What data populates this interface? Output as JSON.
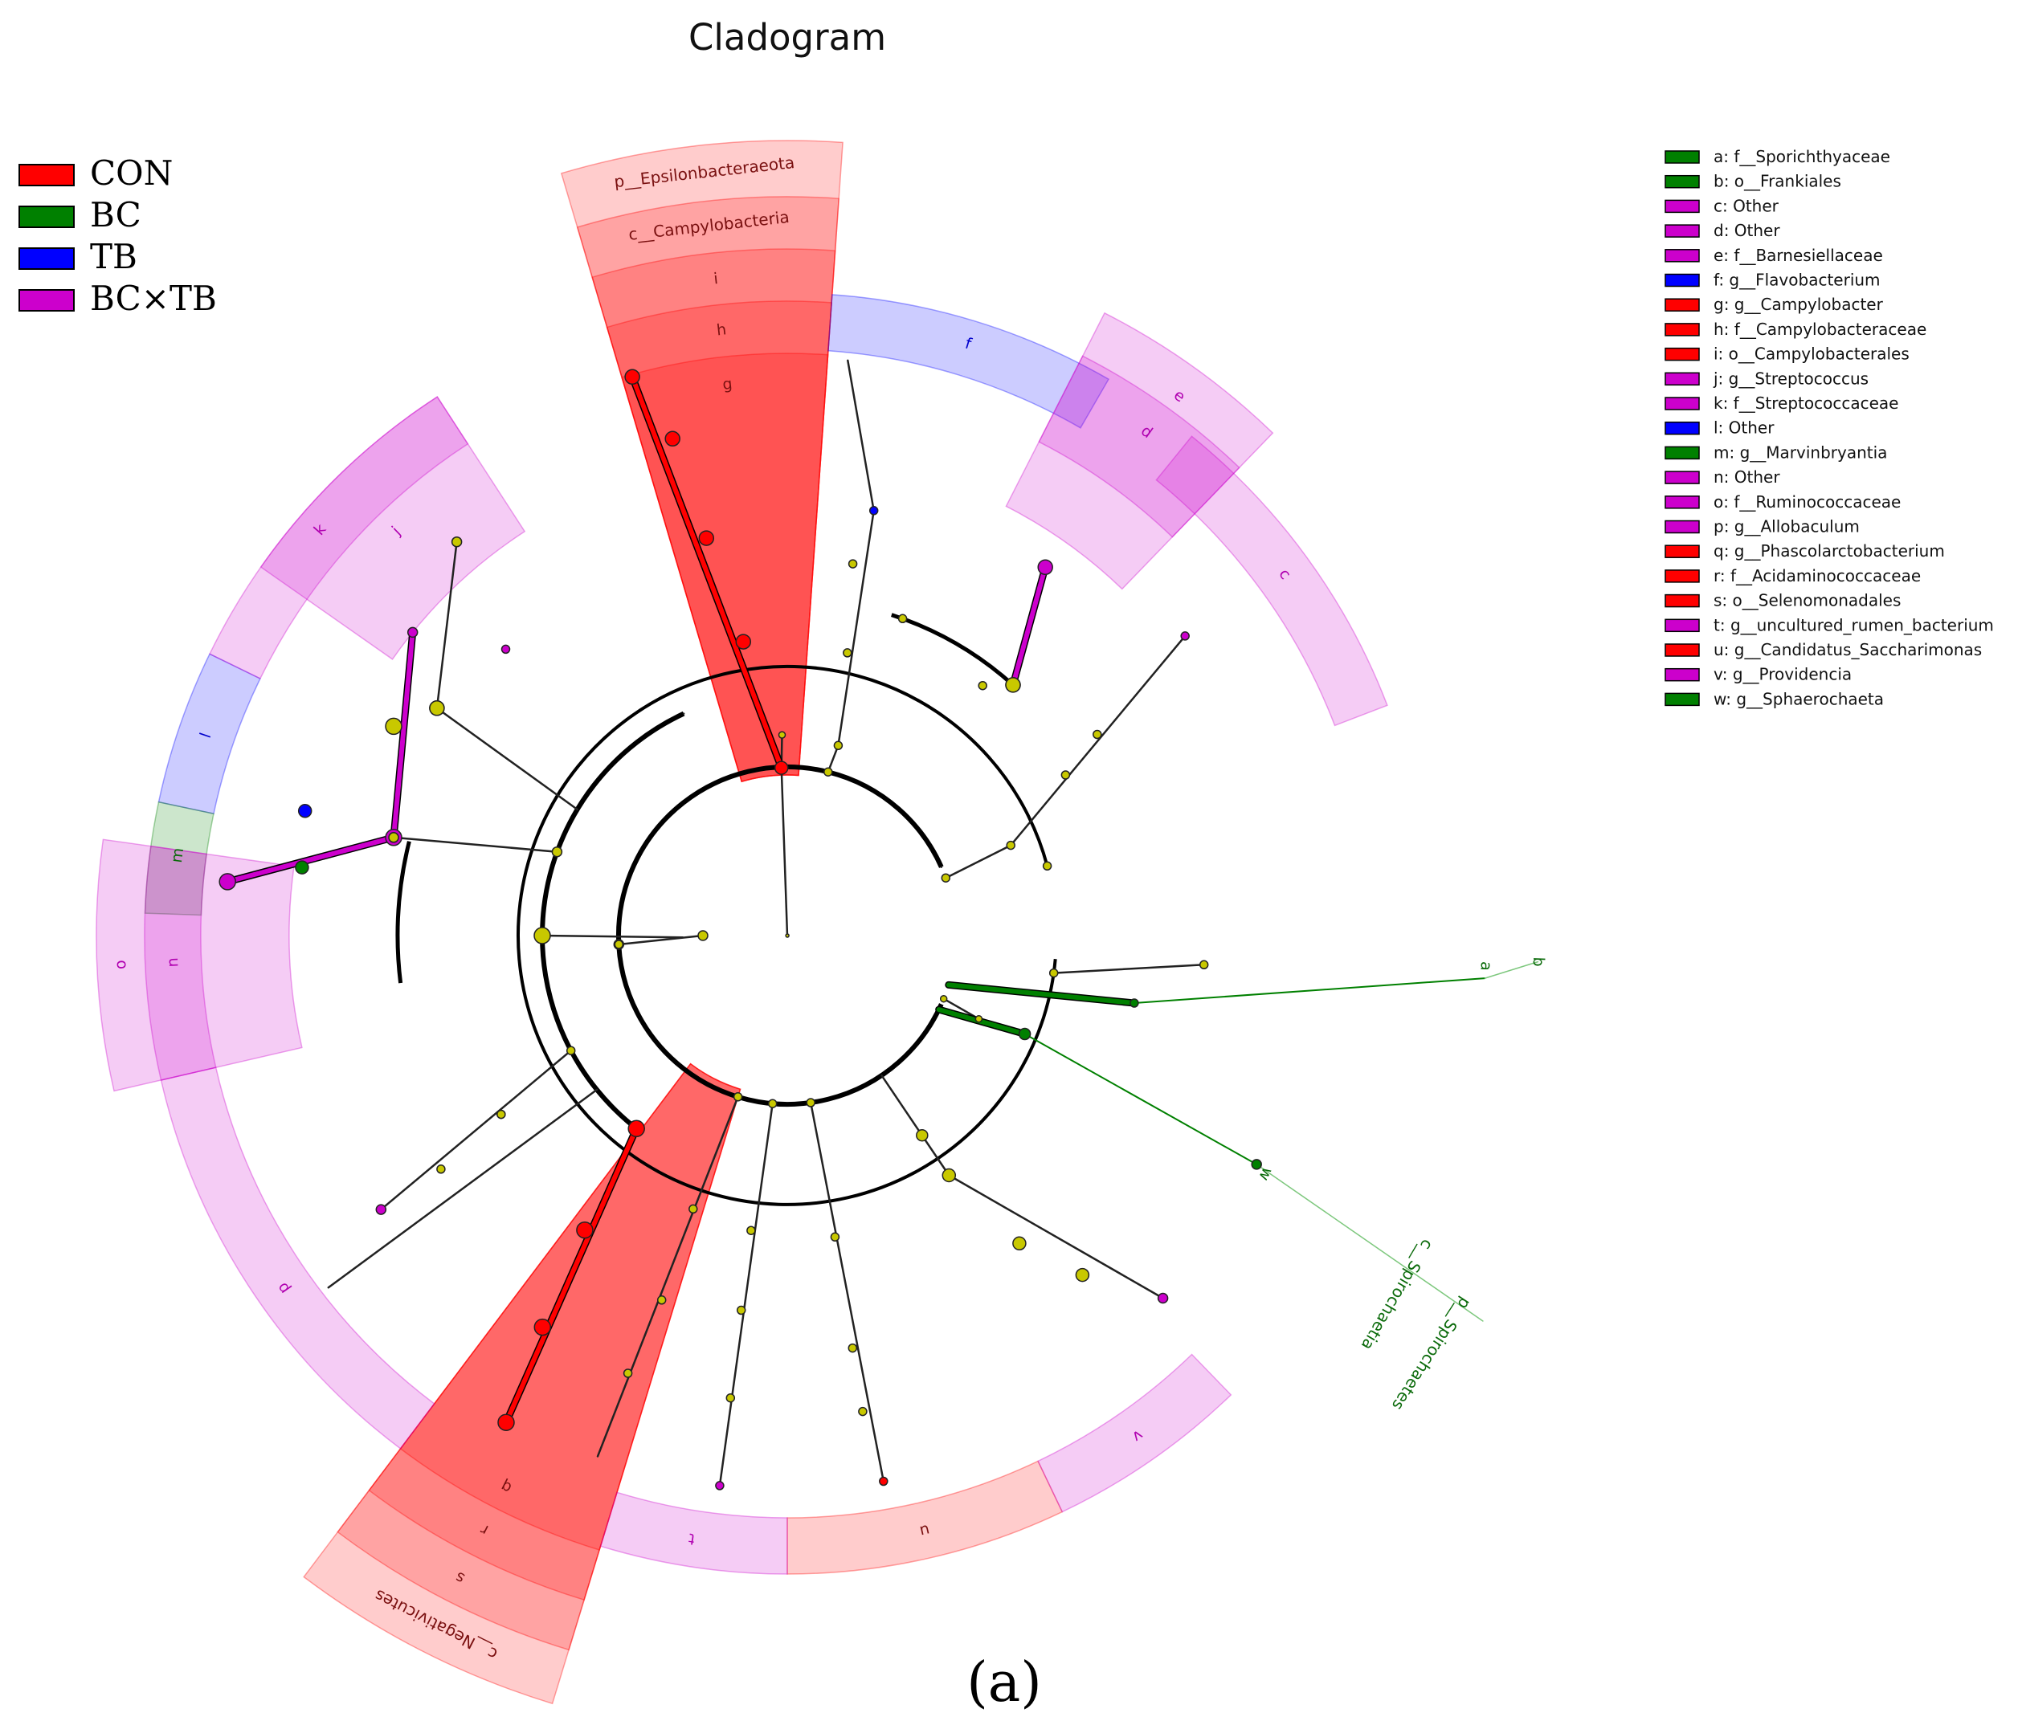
{
  "title": "Cladogram",
  "caption": "(a)",
  "colors": {
    "CON": "#ff0000",
    "BC": "#008000",
    "TB": "#0000ff",
    "BCxTB": "#cc00cc",
    "node": "#c8c800"
  },
  "group_legend": [
    {
      "label": "CON",
      "group": "CON"
    },
    {
      "label": "BC",
      "group": "BC"
    },
    {
      "label": "TB",
      "group": "TB"
    },
    {
      "label": "BC×TB",
      "group": "BCxTB"
    }
  ],
  "key_legend": [
    {
      "text": "a: f__Sporichthyaceae",
      "group": "BC"
    },
    {
      "text": "b: o__Frankiales",
      "group": "BC"
    },
    {
      "text": "c: Other",
      "group": "BCxTB"
    },
    {
      "text": "d: Other",
      "group": "BCxTB"
    },
    {
      "text": "e: f__Barnesiellaceae",
      "group": "BCxTB"
    },
    {
      "text": "f: g__Flavobacterium",
      "group": "TB"
    },
    {
      "text": "g: g__Campylobacter",
      "group": "CON"
    },
    {
      "text": "h: f__Campylobacteraceae",
      "group": "CON"
    },
    {
      "text": "i: o__Campylobacterales",
      "group": "CON"
    },
    {
      "text": "j: g__Streptococcus",
      "group": "BCxTB"
    },
    {
      "text": "k: f__Streptococcaceae",
      "group": "BCxTB"
    },
    {
      "text": "l: Other",
      "group": "TB"
    },
    {
      "text": "m: g__Marvinbryantia",
      "group": "BC"
    },
    {
      "text": "n: Other",
      "group": "BCxTB"
    },
    {
      "text": "o: f__Ruminococcaceae",
      "group": "BCxTB"
    },
    {
      "text": "p: g__Allobaculum",
      "group": "BCxTB"
    },
    {
      "text": "q: g__Phascolarctobacterium",
      "group": "CON"
    },
    {
      "text": "r: f__Acidaminococcaceae",
      "group": "CON"
    },
    {
      "text": "s: o__Selenomonadales",
      "group": "CON"
    },
    {
      "text": "t: g__uncultured_rumen_bacterium",
      "group": "BCxTB"
    },
    {
      "text": "u: g__Candidatus_Saccharimonas",
      "group": "CON"
    },
    {
      "text": "v: g__Providencia",
      "group": "BCxTB"
    },
    {
      "text": "w: g__Sphaerochaeta",
      "group": "BC"
    }
  ],
  "clade_labels": {
    "a": "a",
    "b": "b",
    "c": "c",
    "d": "d",
    "e": "e",
    "f": "f",
    "g": "g",
    "h": "h",
    "i": "i",
    "j": "j",
    "k": "k",
    "l": "l",
    "m": "m",
    "n": "n",
    "o": "o",
    "p": "p",
    "q": "q",
    "r": "r",
    "s": "s",
    "t": "t",
    "u": "u",
    "v": "v",
    "w": "w",
    "p_epsilon": "p__Epsilonbacteraeota",
    "c_campylo": "c__Campylobacteria",
    "c_negativicutes": "c__Negativicutes",
    "p_spirochaetes": "p__Spirochaetes",
    "c_spirochaetia": "c__Spirochaetia"
  }
}
